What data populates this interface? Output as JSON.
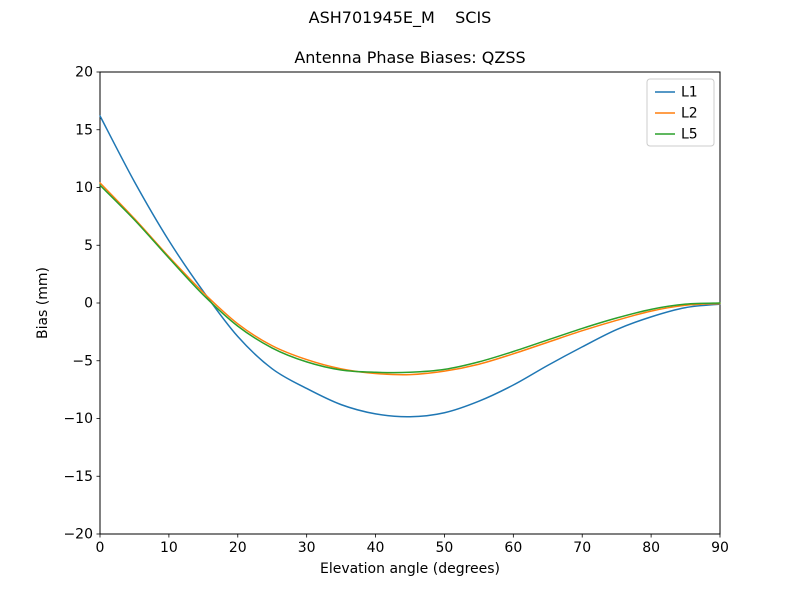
{
  "figure": {
    "background": "#ffffff"
  },
  "chart_data": {
    "type": "line",
    "suptitle": "ASH701945E_M    SCIS",
    "title": "Antenna Phase Biases: QZSS",
    "xlabel": "Elevation angle (degrees)",
    "ylabel": "Bias (mm)",
    "xlim": [
      0,
      90
    ],
    "ylim": [
      -20,
      20
    ],
    "xticks": [
      0,
      10,
      20,
      30,
      40,
      50,
      60,
      70,
      80,
      90
    ],
    "yticks": [
      -20,
      -15,
      -10,
      -5,
      0,
      5,
      10,
      15,
      20
    ],
    "grid": false,
    "legend": {
      "position": "upper-right"
    },
    "x": [
      0,
      5,
      10,
      15,
      20,
      25,
      30,
      35,
      40,
      45,
      50,
      55,
      60,
      65,
      70,
      75,
      80,
      85,
      90
    ],
    "series": [
      {
        "name": "L1",
        "color": "#1f77b4",
        "values": [
          16.2,
          10.5,
          5.4,
          1.0,
          -2.9,
          -5.7,
          -7.4,
          -8.8,
          -9.6,
          -9.85,
          -9.5,
          -8.5,
          -7.1,
          -5.4,
          -3.8,
          -2.3,
          -1.2,
          -0.4,
          -0.1
        ]
      },
      {
        "name": "L2",
        "color": "#ff7f0e",
        "values": [
          10.4,
          7.3,
          4.0,
          0.9,
          -1.8,
          -3.7,
          -4.9,
          -5.7,
          -6.1,
          -6.2,
          -5.9,
          -5.3,
          -4.4,
          -3.4,
          -2.4,
          -1.5,
          -0.7,
          -0.2,
          -0.05
        ]
      },
      {
        "name": "L5",
        "color": "#2ca02c",
        "values": [
          10.2,
          7.2,
          3.9,
          0.7,
          -2.0,
          -3.9,
          -5.1,
          -5.8,
          -6.0,
          -6.0,
          -5.75,
          -5.1,
          -4.2,
          -3.2,
          -2.2,
          -1.3,
          -0.55,
          -0.1,
          0.0
        ]
      }
    ]
  }
}
